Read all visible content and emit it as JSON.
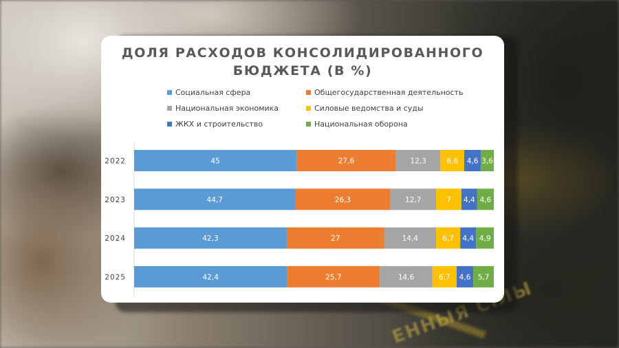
{
  "slide": {
    "title_line1": "ДОЛЯ РАСХОДОВ КОНСОЛИДИРОВАННОГО",
    "title_line2": "БЮДЖЕТА (В %)",
    "background_text": "ЕННЫЯ СІЛЫ"
  },
  "chart_data": {
    "type": "bar",
    "orientation": "horizontal",
    "stacked": true,
    "title": "ДОЛЯ РАСХОДОВ КОНСОЛИДИРОВАННОГО БЮДЖЕТА (В %)",
    "categories": [
      "2022",
      "2023",
      "2024",
      "2025"
    ],
    "legend_position": "top",
    "data_labels": true,
    "series": [
      {
        "name": "Социальная сфера",
        "color": "#5B9BD5",
        "label_color": "#ffffff",
        "values": [
          45,
          44.7,
          42.3,
          42.4
        ],
        "labels": [
          "45",
          "44,7",
          "42,3",
          "42,4"
        ]
      },
      {
        "name": "Общегосударственная деятельность",
        "color": "#ED7D31",
        "label_color": "#ffffff",
        "values": [
          27.6,
          26.3,
          27,
          25.7
        ],
        "labels": [
          "27,6",
          "26,3",
          "27",
          "25,7"
        ]
      },
      {
        "name": "Национальная экономика",
        "color": "#A5A5A5",
        "label_color": "#ffffff",
        "values": [
          12.3,
          12.7,
          14.4,
          14.6
        ],
        "labels": [
          "12,3",
          "12,7",
          "14,4",
          "14,6"
        ]
      },
      {
        "name": "Силовые ведомства и суды",
        "color": "#FFC000",
        "label_color": "#ffffff",
        "values": [
          6.6,
          7,
          6.7,
          6.7
        ],
        "labels": [
          "6,6",
          "7",
          "6,7",
          "6,7"
        ]
      },
      {
        "name": "ЖКХ и строительство",
        "color": "#4472C4",
        "label_color": "#ffffff",
        "values": [
          4.6,
          4.4,
          4.4,
          4.6
        ],
        "labels": [
          "4,6",
          "4,4",
          "4,4",
          "4,6"
        ]
      },
      {
        "name": "Национальная оборона",
        "color": "#70AD47",
        "label_color": "#ffffff",
        "values": [
          3.6,
          4.6,
          4.9,
          5.7
        ],
        "labels": [
          "3,6",
          "4,6",
          "4,9",
          "5,7"
        ]
      }
    ]
  }
}
